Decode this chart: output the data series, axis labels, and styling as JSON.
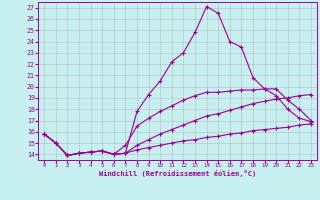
{
  "xlabel": "Windchill (Refroidissement éolien,°C)",
  "background_color": "#c8f0f0",
  "line_color": "#990099",
  "grid_color": "#b0b0b0",
  "xlim": [
    -0.5,
    23.5
  ],
  "ylim": [
    13.5,
    27.5
  ],
  "xticks": [
    0,
    1,
    2,
    3,
    4,
    5,
    6,
    7,
    8,
    9,
    10,
    11,
    12,
    13,
    14,
    15,
    16,
    17,
    18,
    19,
    20,
    21,
    22,
    23
  ],
  "yticks": [
    14,
    15,
    16,
    17,
    18,
    19,
    20,
    21,
    22,
    23,
    24,
    25,
    26,
    27
  ],
  "series": [
    {
      "x": [
        0,
        1,
        2,
        3,
        4,
        5,
        6,
        7,
        8,
        9,
        10,
        11,
        12,
        13,
        14,
        15,
        16,
        17,
        18,
        19,
        20,
        21,
        22,
        23
      ],
      "y": [
        15.8,
        15.0,
        13.9,
        14.1,
        14.2,
        14.3,
        14.0,
        14.1,
        17.8,
        19.3,
        20.5,
        22.2,
        23.0,
        24.8,
        27.1,
        26.5,
        24.0,
        23.5,
        20.8,
        19.8,
        19.2,
        18.0,
        17.2,
        16.9
      ]
    },
    {
      "x": [
        0,
        1,
        2,
        3,
        4,
        5,
        6,
        7,
        8,
        9,
        10,
        11,
        12,
        13,
        14,
        15,
        16,
        17,
        18,
        19,
        20,
        21,
        22,
        23
      ],
      "y": [
        15.8,
        15.0,
        13.9,
        14.1,
        14.2,
        14.3,
        14.0,
        14.8,
        16.5,
        17.2,
        17.8,
        18.3,
        18.8,
        19.2,
        19.5,
        19.5,
        19.6,
        19.7,
        19.7,
        19.8,
        19.8,
        18.8,
        18.0,
        17.0
      ]
    },
    {
      "x": [
        0,
        1,
        2,
        3,
        4,
        5,
        6,
        7,
        8,
        9,
        10,
        11,
        12,
        13,
        14,
        15,
        16,
        17,
        18,
        19,
        20,
        21,
        22,
        23
      ],
      "y": [
        15.8,
        15.0,
        13.9,
        14.1,
        14.2,
        14.3,
        14.0,
        14.1,
        14.8,
        15.3,
        15.8,
        16.2,
        16.6,
        17.0,
        17.4,
        17.6,
        17.9,
        18.2,
        18.5,
        18.7,
        18.9,
        19.0,
        19.2,
        19.3
      ]
    },
    {
      "x": [
        0,
        1,
        2,
        3,
        4,
        5,
        6,
        7,
        8,
        9,
        10,
        11,
        12,
        13,
        14,
        15,
        16,
        17,
        18,
        19,
        20,
        21,
        22,
        23
      ],
      "y": [
        15.8,
        15.0,
        13.9,
        14.1,
        14.2,
        14.3,
        14.0,
        14.1,
        14.4,
        14.6,
        14.8,
        15.0,
        15.2,
        15.3,
        15.5,
        15.6,
        15.8,
        15.9,
        16.1,
        16.2,
        16.3,
        16.4,
        16.6,
        16.7
      ]
    }
  ]
}
